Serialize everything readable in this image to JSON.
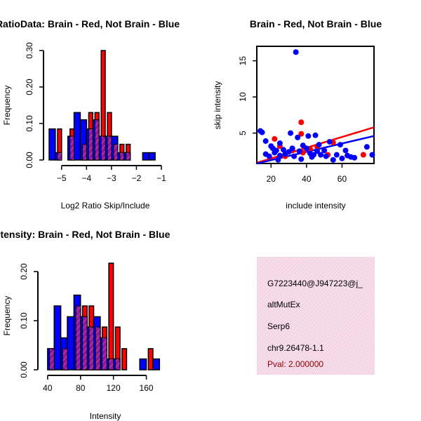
{
  "chart_data": [
    {
      "type": "histogram",
      "title": "RatioData: Brain - Red, Not Brain - Blue",
      "xlabel": "Log2 Ratio Skip/Include",
      "ylabel": "Frequency",
      "xlim": [
        -5.5,
        -1.0
      ],
      "ylim": [
        0.0,
        0.3
      ],
      "xticks": [
        -5,
        -4,
        -3,
        -2,
        -1
      ],
      "yticks": [
        0.0,
        0.1,
        0.2,
        0.3
      ],
      "bin_width": 0.25,
      "series": [
        {
          "name": "Brain",
          "color": "#ff0000",
          "bins": [
            [
              -5.25,
              0.085
            ],
            [
              -4.75,
              0.085
            ],
            [
              -4.25,
              0.043
            ],
            [
              -4.0,
              0.13
            ],
            [
              -3.75,
              0.13
            ],
            [
              -3.5,
              0.3
            ],
            [
              -3.25,
              0.13
            ],
            [
              -3.0,
              0.043
            ],
            [
              -2.75,
              0.043
            ],
            [
              -2.5,
              0.043
            ]
          ]
        },
        {
          "name": "Not Brain",
          "color": "#0000ff",
          "bins": [
            [
              -5.5,
              0.085
            ],
            [
              -5.25,
              0.02
            ],
            [
              -4.75,
              0.065
            ],
            [
              -4.5,
              0.13
            ],
            [
              -4.25,
              0.11
            ],
            [
              -4.0,
              0.085
            ],
            [
              -3.75,
              0.11
            ],
            [
              -3.5,
              0.065
            ],
            [
              -3.25,
              0.065
            ],
            [
              -3.0,
              0.065
            ],
            [
              -2.75,
              0.02
            ],
            [
              -2.5,
              0.02
            ],
            [
              -1.75,
              0.02
            ],
            [
              -1.5,
              0.02
            ]
          ]
        }
      ]
    },
    {
      "type": "scatter",
      "title": "Brain - Red, Not Brain - Blue",
      "xlabel": "include intensity",
      "ylabel": "skip intensity",
      "xlim": [
        12,
        78
      ],
      "ylim": [
        0.8,
        17
      ],
      "xticks": [
        20,
        40,
        60
      ],
      "yticks": [
        5,
        10,
        15
      ],
      "series": [
        {
          "name": "Brain",
          "color": "#ff0000",
          "points": [
            [
              22,
              4.2
            ],
            [
              25,
              3.2
            ],
            [
              28,
              1.8
            ],
            [
              32,
              2.6
            ],
            [
              37,
              6.5
            ],
            [
              37,
              4.9
            ],
            [
              38,
              2.3
            ],
            [
              42,
              2.8
            ],
            [
              46,
              3.1
            ],
            [
              52,
              2.0
            ],
            [
              55,
              3.7
            ],
            [
              72,
              2.0
            ]
          ]
        },
        {
          "name": "Not Brain",
          "color": "#0000ff",
          "points": [
            [
              14,
              5.3
            ],
            [
              15,
              5.1
            ],
            [
              17,
              2.1
            ],
            [
              17,
              3.9
            ],
            [
              19,
              1.8
            ],
            [
              20,
              3.2
            ],
            [
              21,
              2.9
            ],
            [
              22,
              2.3
            ],
            [
              23,
              2.6
            ],
            [
              24,
              1.3
            ],
            [
              25,
              3.6
            ],
            [
              25,
              1.9
            ],
            [
              27,
              2.7
            ],
            [
              28,
              2.1
            ],
            [
              30,
              2.4
            ],
            [
              31,
              5.0
            ],
            [
              32,
              2.9
            ],
            [
              33,
              1.8
            ],
            [
              34,
              16.2
            ],
            [
              35,
              4.4
            ],
            [
              36,
              2.5
            ],
            [
              37,
              1.4
            ],
            [
              38,
              3.3
            ],
            [
              40,
              2.9
            ],
            [
              41,
              4.6
            ],
            [
              42,
              2.2
            ],
            [
              43,
              1.7
            ],
            [
              44,
              2.0
            ],
            [
              45,
              4.7
            ],
            [
              46,
              2.5
            ],
            [
              47,
              3.4
            ],
            [
              48,
              2.0
            ],
            [
              50,
              2.6
            ],
            [
              51,
              1.8
            ],
            [
              53,
              3.8
            ],
            [
              55,
              1.3
            ],
            [
              57,
              2.0
            ],
            [
              59,
              3.4
            ],
            [
              60,
              1.5
            ],
            [
              62,
              2.6
            ],
            [
              63,
              1.9
            ],
            [
              65,
              1.7
            ],
            [
              67,
              1.6
            ],
            [
              74,
              3.1
            ],
            [
              77,
              2.0
            ]
          ]
        }
      ],
      "fit_lines": [
        {
          "name": "Brain fit",
          "color": "#ff0000",
          "from": [
            12,
            0.9
          ],
          "to": [
            78,
            5.8
          ]
        },
        {
          "name": "Not Brain fit",
          "color": "#0000ff",
          "from": [
            12,
            0.8
          ],
          "to": [
            78,
            4.6
          ]
        }
      ]
    },
    {
      "type": "histogram",
      "title": "Gene Itensity: Brain - Red, Not Brain - Blue",
      "xlabel": "Intensity",
      "ylabel": "Frequency",
      "xlim": [
        35,
        180
      ],
      "ylim": [
        0.0,
        0.22
      ],
      "xticks": [
        40,
        80,
        120,
        160
      ],
      "yticks": [
        0.0,
        0.1,
        0.2
      ],
      "bin_width": 8,
      "series": [
        {
          "name": "Brain",
          "color": "#ff0000",
          "bins": [
            [
              40,
              0.043
            ],
            [
              56,
              0.043
            ],
            [
              72,
              0.13
            ],
            [
              80,
              0.13
            ],
            [
              88,
              0.13
            ],
            [
              96,
              0.087
            ],
            [
              104,
              0.087
            ],
            [
              112,
              0.217
            ],
            [
              120,
              0.087
            ],
            [
              128,
              0.043
            ],
            [
              160,
              0.043
            ]
          ]
        },
        {
          "name": "Not Brain",
          "color": "#0000ff",
          "bins": [
            [
              40,
              0.043
            ],
            [
              48,
              0.13
            ],
            [
              56,
              0.065
            ],
            [
              64,
              0.108
            ],
            [
              72,
              0.152
            ],
            [
              80,
              0.108
            ],
            [
              88,
              0.087
            ],
            [
              96,
              0.108
            ],
            [
              104,
              0.065
            ],
            [
              112,
              0.022
            ],
            [
              120,
              0.022
            ],
            [
              152,
              0.022
            ],
            [
              168,
              0.022
            ]
          ]
        }
      ]
    }
  ],
  "info_box": {
    "lines": [
      "G7223440@J947223@j_",
      "altMutEx",
      "Serp6",
      "chr9.26478-1.1"
    ],
    "pval": "Pval: 2.000000",
    "background": "#f6dce9",
    "pval_color": "#8b0000"
  },
  "colors": {
    "brain": "#ff0000",
    "not_brain": "#0000ff",
    "overlap": "#8b1aa0"
  }
}
